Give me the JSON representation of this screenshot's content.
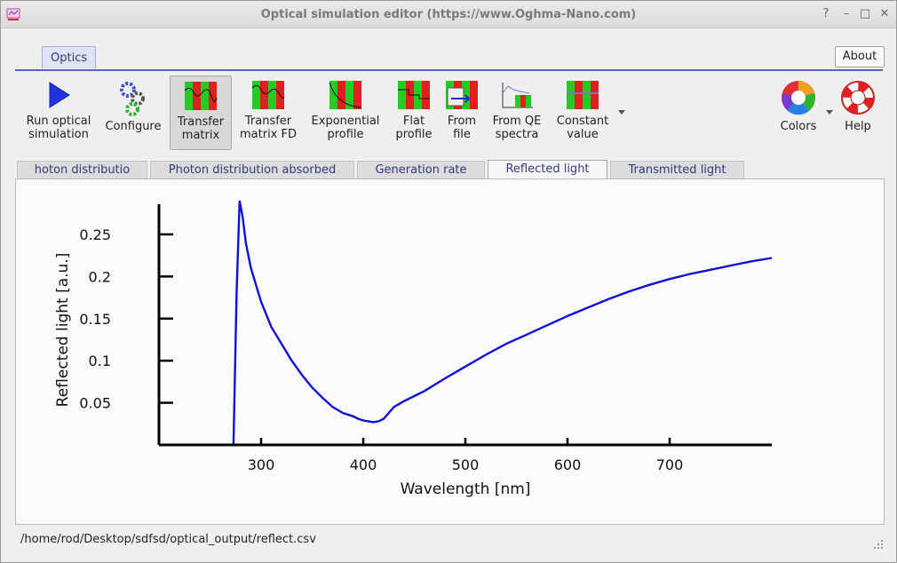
{
  "window": {
    "title": "Optical simulation editor (https://www.Oghma-Nano.com)",
    "controls": {
      "help": "?",
      "minimize": "–",
      "maximize": "□",
      "close": "✕"
    }
  },
  "ribbon": {
    "tab": "Optics",
    "about": "About",
    "tools": {
      "run": [
        "Run optical",
        "simulation"
      ],
      "configure": [
        "Configure"
      ],
      "transfer_matrix": [
        "Transfer",
        "matrix"
      ],
      "transfer_matrix_fd": [
        "Transfer",
        "matrix FD"
      ],
      "exponential": [
        "Exponential",
        "profile"
      ],
      "flat": [
        "Flat",
        "profile"
      ],
      "from_file": [
        "From",
        "file"
      ],
      "from_qe": [
        "From QE",
        "spectra"
      ],
      "constant": [
        "Constant",
        "value"
      ],
      "colors": [
        "Colors"
      ],
      "help": [
        "Help"
      ]
    }
  },
  "subtabs": [
    "hoton distributio",
    "Photon distribution absorbed",
    "Generation rate",
    "Reflected light",
    "Transmitted light"
  ],
  "active_subtab": "Reflected light",
  "status": {
    "path": "/home/rod/Desktop/sdfsd/optical_output/reflect.csv"
  },
  "colors": {
    "curve": "#1010d8",
    "accent": "#5b63b5"
  },
  "chart_data": {
    "type": "line",
    "xlabel": "Wavelength [nm]",
    "ylabel": "Reflected light [a.u.]",
    "xlim": [
      200,
      800
    ],
    "ylim": [
      0,
      0.29
    ],
    "xticks": [
      300,
      400,
      500,
      600,
      700
    ],
    "yticks": [
      0.05,
      0.1,
      0.15,
      0.2,
      0.25
    ],
    "series": [
      {
        "x": [
          200,
          273,
          276,
          279,
          282,
          285,
          290,
          300,
          310,
          320,
          330,
          340,
          350,
          360,
          370,
          380,
          390,
          395,
          400,
          405,
          410,
          415,
          420,
          425,
          430,
          440,
          450,
          460,
          480,
          500,
          520,
          540,
          560,
          580,
          600,
          620,
          640,
          660,
          680,
          700,
          720,
          740,
          760,
          780,
          800
        ],
        "y": [
          0,
          0,
          0.18,
          0.29,
          0.27,
          0.24,
          0.21,
          0.17,
          0.14,
          0.12,
          0.1,
          0.083,
          0.068,
          0.056,
          0.045,
          0.038,
          0.034,
          0.031,
          0.029,
          0.028,
          0.027,
          0.028,
          0.031,
          0.038,
          0.045,
          0.052,
          0.058,
          0.064,
          0.079,
          0.093,
          0.107,
          0.12,
          0.131,
          0.142,
          0.153,
          0.163,
          0.173,
          0.182,
          0.19,
          0.197,
          0.203,
          0.208,
          0.213,
          0.218,
          0.222
        ]
      }
    ]
  }
}
